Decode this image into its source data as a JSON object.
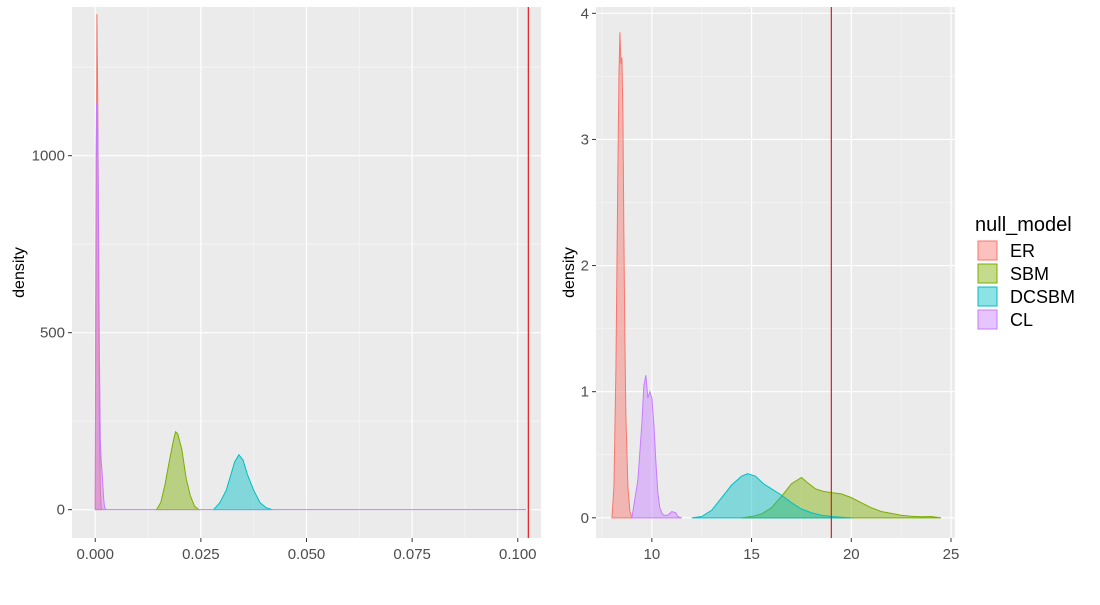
{
  "colors": {
    "panel_bg": "#ebebeb",
    "grid_major": "#ffffff",
    "grid_minor": "#f5f5f5",
    "ref_line": "#e41a1c"
  },
  "legend": {
    "title": "null_model",
    "placement": "right",
    "items": [
      {
        "label": "ER",
        "color": "#f8766d"
      },
      {
        "label": "SBM",
        "color": "#7cae00"
      },
      {
        "label": "DCSBM",
        "color": "#00bfc4"
      },
      {
        "label": "CL",
        "color": "#c77cff"
      }
    ]
  },
  "chart_data": [
    {
      "type": "area",
      "xlabel": "",
      "ylabel": "density",
      "xlim": [
        -0.0055,
        0.1055
      ],
      "ylim": [
        -80,
        1420
      ],
      "xticks": [
        0.0,
        0.025,
        0.05,
        0.075,
        0.1
      ],
      "xtick_labels": [
        "0.000",
        "0.025",
        "0.050",
        "0.075",
        "0.100"
      ],
      "yticks": [
        0,
        500,
        1000
      ],
      "ytick_labels": [
        "0",
        "500",
        "1000"
      ],
      "grid": true,
      "ref_line_x": 0.1025,
      "series": [
        {
          "name": "ER",
          "x": [
            0,
            0.0002,
            0.0004,
            0.0006,
            0.0008,
            0.001,
            0.0012,
            0.0014,
            0.0016
          ],
          "y": [
            0,
            700,
            1400,
            1150,
            650,
            250,
            60,
            10,
            0
          ]
        },
        {
          "name": "SBM",
          "x": [
            0.0145,
            0.0155,
            0.0165,
            0.0175,
            0.0185,
            0.019,
            0.0195,
            0.0205,
            0.0215,
            0.0225,
            0.0235,
            0.0245
          ],
          "y": [
            0,
            20,
            70,
            135,
            195,
            220,
            215,
            170,
            90,
            40,
            10,
            0
          ]
        },
        {
          "name": "DCSBM",
          "x": [
            0.028,
            0.0295,
            0.031,
            0.032,
            0.033,
            0.034,
            0.035,
            0.036,
            0.0375,
            0.039,
            0.0405,
            0.042
          ],
          "y": [
            0,
            20,
            55,
            95,
            135,
            155,
            140,
            100,
            55,
            20,
            5,
            0
          ]
        },
        {
          "name": "CL",
          "x": [
            0,
            0.0001,
            0.0002,
            0.0003,
            0.0004,
            0.0005,
            0.0006,
            0.0007,
            0.0008,
            0.0009,
            0.001,
            0.0012,
            0.0014,
            0.0016,
            0.0018,
            0.002,
            0.0022,
            0.0025,
            0.03,
            0.06,
            0.102
          ],
          "y": [
            0,
            600,
            1000,
            1150,
            1100,
            1000,
            1080,
            950,
            800,
            600,
            420,
            200,
            140,
            110,
            70,
            30,
            8,
            0,
            0,
            0,
            0
          ]
        }
      ]
    },
    {
      "type": "area",
      "xlabel": "",
      "ylabel": "density",
      "xlim": [
        7.2,
        25.2
      ],
      "ylim": [
        -0.16,
        4.05
      ],
      "xticks": [
        10,
        15,
        20,
        25
      ],
      "xtick_labels": [
        "10",
        "15",
        "20",
        "25"
      ],
      "yticks": [
        0,
        1,
        2,
        3,
        4
      ],
      "ytick_labels": [
        "0",
        "1",
        "2",
        "3",
        "4"
      ],
      "grid": true,
      "ref_line_x": 19,
      "series": [
        {
          "name": "ER",
          "x": [
            8.0,
            8.1,
            8.2,
            8.3,
            8.35,
            8.4,
            8.45,
            8.5,
            8.55,
            8.6,
            8.65,
            8.7,
            8.8,
            8.9,
            9.0
          ],
          "y": [
            0,
            0.25,
            1.2,
            2.8,
            3.5,
            3.85,
            3.6,
            3.65,
            3.2,
            2.2,
            1.4,
            0.8,
            0.25,
            0.05,
            0
          ]
        },
        {
          "name": "SBM",
          "x": [
            14.5,
            15.0,
            15.5,
            16.0,
            16.5,
            17.0,
            17.5,
            17.8,
            18.2,
            18.6,
            19.0,
            19.5,
            20.0,
            20.5,
            21.0,
            21.5,
            22.0,
            22.5,
            23.0,
            23.5,
            24.0,
            24.5
          ],
          "y": [
            0,
            0.01,
            0.03,
            0.08,
            0.17,
            0.27,
            0.32,
            0.28,
            0.23,
            0.21,
            0.2,
            0.19,
            0.16,
            0.12,
            0.08,
            0.05,
            0.035,
            0.02,
            0.012,
            0.008,
            0.01,
            0
          ]
        },
        {
          "name": "DCSBM",
          "x": [
            12.0,
            12.5,
            13.0,
            13.5,
            14.0,
            14.5,
            14.8,
            15.2,
            15.6,
            16.0,
            16.5,
            17.0,
            17.5,
            18.0,
            18.5,
            19.0,
            19.5,
            20.0
          ],
          "y": [
            0,
            0.01,
            0.06,
            0.16,
            0.26,
            0.33,
            0.35,
            0.33,
            0.27,
            0.23,
            0.18,
            0.12,
            0.07,
            0.04,
            0.02,
            0.01,
            0.005,
            0
          ]
        },
        {
          "name": "CL",
          "x": [
            9.0,
            9.3,
            9.5,
            9.6,
            9.7,
            9.8,
            9.9,
            10.0,
            10.1,
            10.2,
            10.3,
            10.4,
            10.5,
            10.6,
            10.8,
            11.0,
            11.2,
            11.3,
            11.5
          ],
          "y": [
            0,
            0.3,
            0.75,
            1.05,
            1.13,
            0.95,
            1.0,
            0.95,
            0.75,
            0.45,
            0.2,
            0.08,
            0.04,
            0.02,
            0.02,
            0.05,
            0.04,
            0.01,
            0
          ]
        }
      ]
    }
  ]
}
